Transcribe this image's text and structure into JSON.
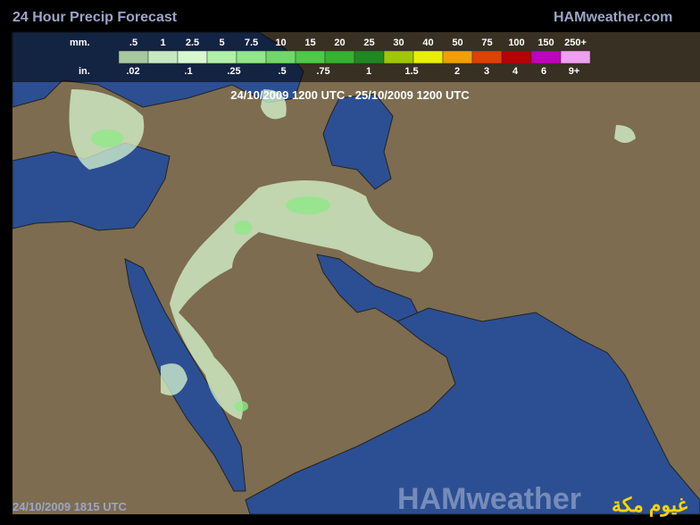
{
  "header": {
    "title": "24 Hour Precip Forecast",
    "brand": "HAMweather.com",
    "period": "24/10/2009 1200 UTC - 25/10/2009 1200 UTC"
  },
  "legend": {
    "mm_label": "mm.",
    "mm": [
      ".5",
      "1",
      "2.5",
      "5",
      "7.5",
      "10",
      "15",
      "20",
      "25",
      "30",
      "40",
      "50",
      "75",
      "100",
      "150",
      "250+"
    ],
    "colors": [
      "#a8c8a0",
      "#c8e8c0",
      "#d8f8d0",
      "#b0f0a8",
      "#90e888",
      "#70d868",
      "#50c848",
      "#38b030",
      "#208820",
      "#a0c800",
      "#e8f000",
      "#f0a000",
      "#e04000",
      "#b80000",
      "#c000c0",
      "#f0a0f0"
    ],
    "in_label": "in.",
    "in": [
      ".02",
      ".1",
      ".25",
      ".5",
      ".75",
      "1",
      "1.5",
      "2",
      "3",
      "4",
      "6",
      "9+"
    ]
  },
  "footer": {
    "timestamp": "24/10/2009 1815 UTC",
    "watermark": "HAMweather",
    "caption": "غيوم مكة"
  }
}
